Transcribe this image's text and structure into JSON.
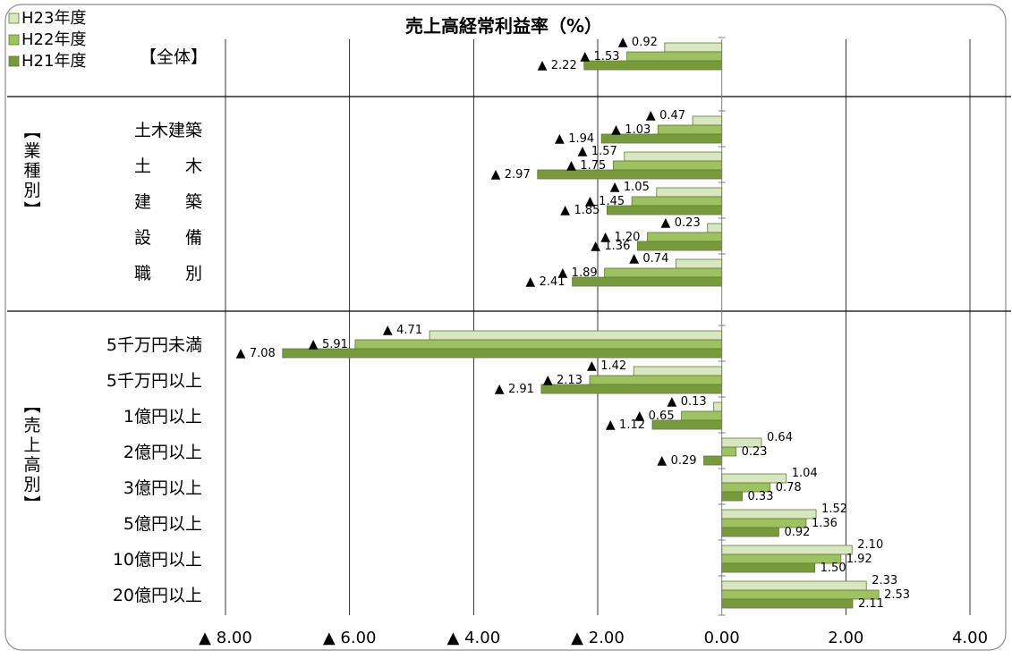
{
  "chart_data": {
    "type": "bar",
    "orientation": "horizontal",
    "title": "売上高経常利益率（%）",
    "negative_prefix": "▲",
    "xlim": [
      -8,
      4
    ],
    "x_ticks": [
      -8,
      -6,
      -4,
      -2,
      0,
      2,
      4
    ],
    "x_tick_labels": [
      "▲ 8.00",
      "▲ 6.00",
      "▲ 4.00",
      "▲ 2.00",
      "0.00",
      "2.00",
      "4.00"
    ],
    "grid": true,
    "legend_position": "top-left",
    "series": [
      {
        "name": "H23年度",
        "color": "#d8e7bf",
        "values": [
          -0.92,
          -0.47,
          -1.57,
          -1.05,
          -0.23,
          -0.74,
          -4.71,
          -1.42,
          -0.13,
          0.64,
          1.04,
          1.52,
          2.1,
          2.33
        ]
      },
      {
        "name": "H22年度",
        "color": "#9ec163",
        "values": [
          -1.53,
          -1.03,
          -1.75,
          -1.45,
          -1.2,
          -1.89,
          -5.91,
          -2.13,
          -0.65,
          0.23,
          0.78,
          1.36,
          1.92,
          2.53
        ]
      },
      {
        "name": "H21年度",
        "color": "#779a3c",
        "values": [
          -2.22,
          -1.94,
          -2.97,
          -1.85,
          -1.36,
          -2.41,
          -7.08,
          -2.91,
          -1.12,
          -0.29,
          0.33,
          0.92,
          1.5,
          2.11
        ]
      }
    ],
    "categories": [
      {
        "group": "all",
        "label": "【全体】"
      },
      {
        "group": "industry",
        "label": "土木建築"
      },
      {
        "group": "industry",
        "label": "土　　木"
      },
      {
        "group": "industry",
        "label": "建　　築"
      },
      {
        "group": "industry",
        "label": "設　　備"
      },
      {
        "group": "industry",
        "label": "職　　別"
      },
      {
        "group": "sales",
        "label": "5千万円未満"
      },
      {
        "group": "sales",
        "label": "5千万円以上"
      },
      {
        "group": "sales",
        "label": "1億円以上"
      },
      {
        "group": "sales",
        "label": "2億円以上"
      },
      {
        "group": "sales",
        "label": "3億円以上"
      },
      {
        "group": "sales",
        "label": "5億円以上"
      },
      {
        "group": "sales",
        "label": "10億円以上"
      },
      {
        "group": "sales",
        "label": "20億円以上"
      }
    ],
    "groups": [
      {
        "id": "all",
        "label": ""
      },
      {
        "id": "industry",
        "label": "【業種別】"
      },
      {
        "id": "sales",
        "label": "【売上高別】"
      }
    ]
  }
}
